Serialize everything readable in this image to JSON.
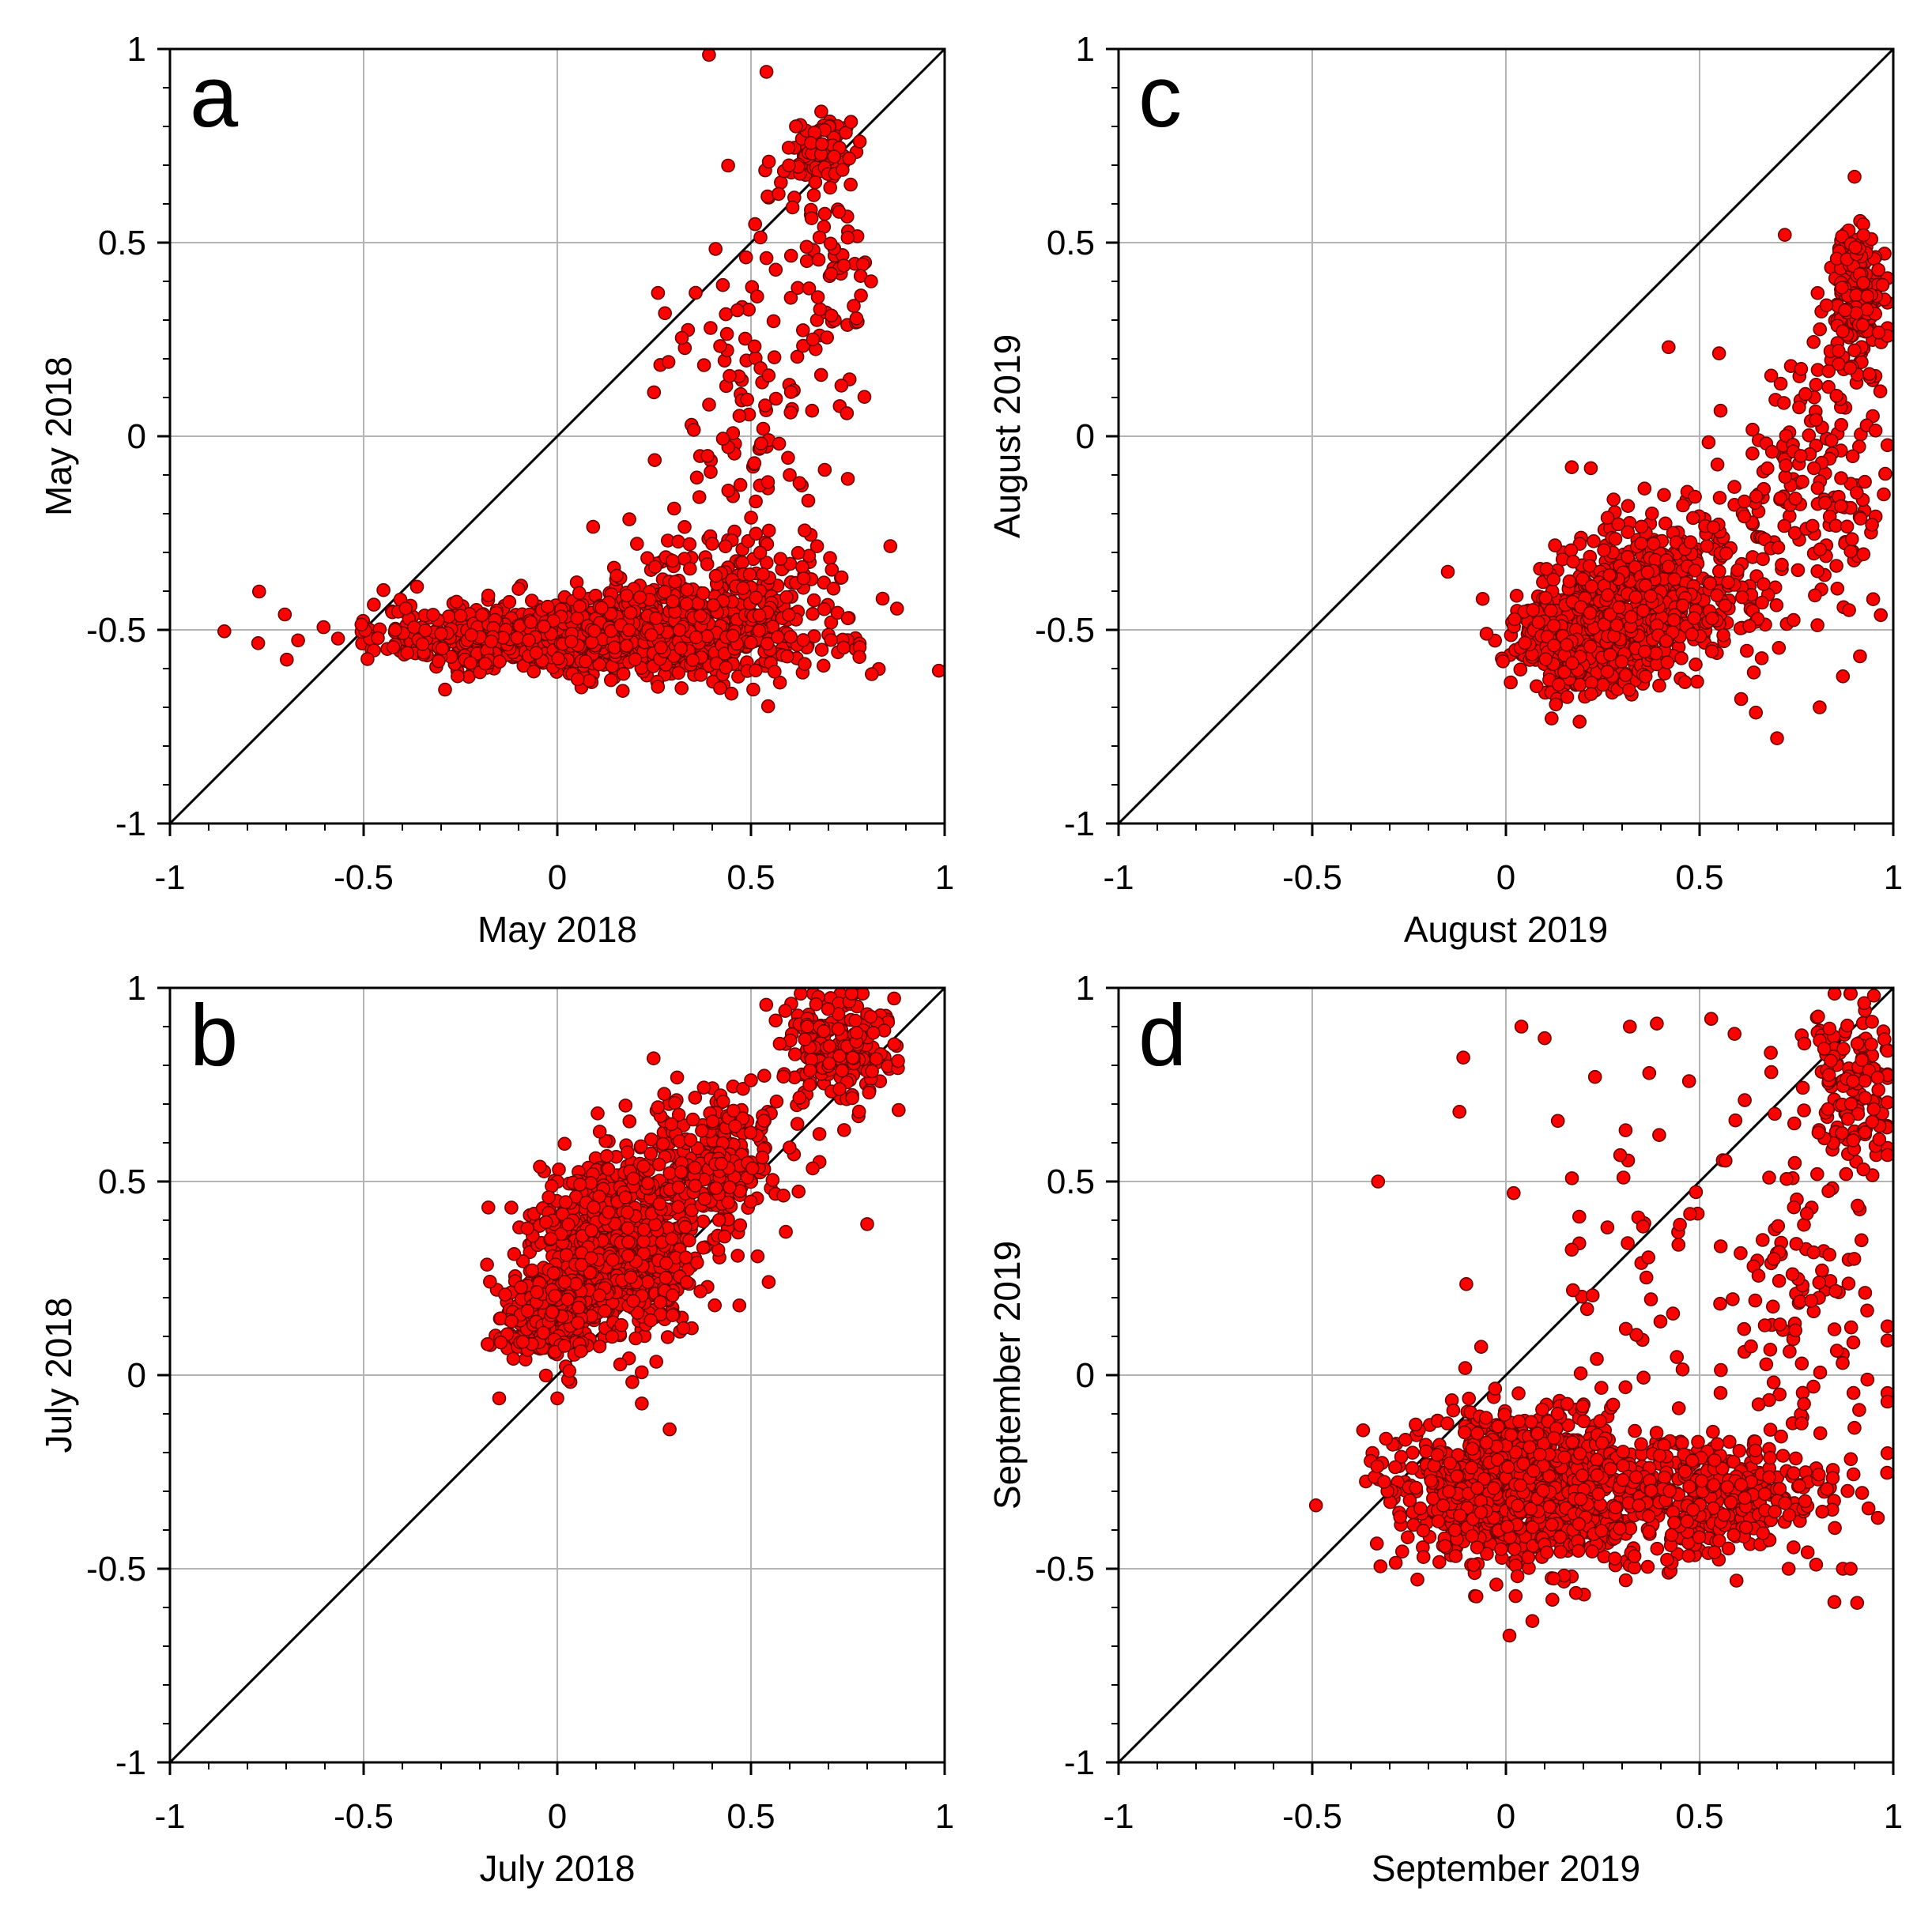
{
  "figure": {
    "colors": {
      "marker_fill": "#ff0000",
      "marker_edge": "#6a0000",
      "grid": "#b4b4b4",
      "line": "#000000"
    }
  },
  "chart_data": [
    {
      "panel": "a",
      "type": "scatter",
      "xlabel": "May 2018",
      "ylabel": "May 2018",
      "xlim": [
        -1,
        1
      ],
      "ylim": [
        -1,
        1
      ],
      "xticks": [
        "-1",
        "-0.5",
        "0",
        "0.5",
        "1"
      ],
      "yticks": [
        "-1",
        "-0.5",
        "0",
        "0.5",
        "1"
      ],
      "reference_line": "y = x",
      "clusters": [
        {
          "center": [
            0.05,
            -0.52
          ],
          "spread": [
            0.26,
            0.045
          ],
          "count": 900
        },
        {
          "center": [
            0.4,
            -0.45
          ],
          "spread": [
            0.18,
            0.09
          ],
          "count": 350
        },
        {
          "center": [
            0.5,
            0.1
          ],
          "spread": [
            0.1,
            0.28
          ],
          "count": 130
        },
        {
          "center": [
            0.68,
            0.74
          ],
          "spread": [
            0.05,
            0.04
          ],
          "count": 70
        },
        {
          "center": [
            0.71,
            0.4
          ],
          "spread": [
            0.05,
            0.15
          ],
          "count": 60
        }
      ],
      "points": [
        [
          0.81,
          0.4
        ],
        [
          0.78,
          -0.57
        ],
        [
          0.75,
          -0.47
        ],
        [
          0.26,
          0.37
        ],
        [
          -0.3,
          -0.51
        ],
        [
          0.6,
          -0.1
        ],
        [
          0.75,
          -0.11
        ],
        [
          0.66,
          0.25
        ],
        [
          0.54,
          0.46
        ]
      ]
    },
    {
      "panel": "b",
      "type": "scatter",
      "xlabel": "July 2018",
      "ylabel": "July 2018",
      "xlim": [
        -1,
        1
      ],
      "ylim": [
        -1,
        1
      ],
      "xticks": [
        "-1",
        "-0.5",
        "0",
        "0.5",
        "1"
      ],
      "yticks": [
        "-1",
        "-0.5",
        "0",
        "0.5",
        "1"
      ],
      "reference_line": "y = x",
      "clusters": [
        {
          "center": [
            0.15,
            0.33
          ],
          "spread": [
            0.1,
            0.11
          ],
          "count": 850
        },
        {
          "center": [
            -0.03,
            0.15
          ],
          "spread": [
            0.06,
            0.06
          ],
          "count": 250
        },
        {
          "center": [
            0.4,
            0.55
          ],
          "spread": [
            0.1,
            0.1
          ],
          "count": 250
        },
        {
          "center": [
            0.72,
            0.85
          ],
          "spread": [
            0.07,
            0.07
          ],
          "count": 200
        }
      ],
      "points": [
        [
          0.29,
          -0.14
        ],
        [
          0.8,
          0.39
        ],
        [
          0.0,
          -0.06
        ],
        [
          -0.15,
          -0.06
        ],
        [
          -0.18,
          0.08
        ],
        [
          0.47,
          0.18
        ],
        [
          0.59,
          0.37
        ],
        [
          0.35,
          0.66
        ]
      ]
    },
    {
      "panel": "c",
      "type": "scatter",
      "xlabel": "August 2019",
      "ylabel": "August 2019",
      "xlim": [
        -1,
        1
      ],
      "ylim": [
        -1,
        1
      ],
      "xticks": [
        "-1",
        "-0.5",
        "0",
        "0.5",
        "1"
      ],
      "yticks": [
        "-1",
        "-0.5",
        "0",
        "0.5",
        "1"
      ],
      "reference_line": "y = x",
      "clusters": [
        {
          "center": [
            0.2,
            -0.53
          ],
          "spread": [
            0.08,
            0.06
          ],
          "count": 700
        },
        {
          "center": [
            0.38,
            -0.4
          ],
          "spread": [
            0.12,
            0.1
          ],
          "count": 450
        },
        {
          "center": [
            0.7,
            -0.2
          ],
          "spread": [
            0.12,
            0.18
          ],
          "count": 120
        },
        {
          "center": [
            0.91,
            0.35
          ],
          "spread": [
            0.035,
            0.1
          ],
          "count": 180
        },
        {
          "center": [
            0.85,
            -0.1
          ],
          "spread": [
            0.06,
            0.2
          ],
          "count": 80
        }
      ],
      "points": [
        [
          -0.15,
          -0.35
        ],
        [
          -0.06,
          -0.42
        ],
        [
          -0.05,
          -0.51
        ],
        [
          0.7,
          -0.78
        ],
        [
          0.81,
          -0.7
        ],
        [
          0.42,
          0.23
        ],
        [
          0.72,
          0.52
        ],
        [
          0.9,
          0.67
        ],
        [
          0.17,
          -0.08
        ],
        [
          0.64,
          -0.61
        ],
        [
          0.87,
          -0.62
        ]
      ]
    },
    {
      "panel": "d",
      "type": "scatter",
      "xlabel": "September 2019",
      "ylabel": "September 2019",
      "xlim": [
        -1,
        1
      ],
      "ylim": [
        -1,
        1
      ],
      "xticks": [
        "-1",
        "-0.5",
        "0",
        "0.5",
        "1"
      ],
      "yticks": [
        "-1",
        "-0.5",
        "0",
        "0.5",
        "1"
      ],
      "reference_line": "y = x",
      "clusters": [
        {
          "center": [
            0.05,
            -0.3
          ],
          "spread": [
            0.17,
            0.1
          ],
          "count": 1050
        },
        {
          "center": [
            0.55,
            -0.32
          ],
          "spread": [
            0.14,
            0.08
          ],
          "count": 300
        },
        {
          "center": [
            0.9,
            0.75
          ],
          "spread": [
            0.06,
            0.12
          ],
          "count": 150
        },
        {
          "center": [
            0.78,
            0.1
          ],
          "spread": [
            0.12,
            0.28
          ],
          "count": 120
        },
        {
          "center": [
            0.4,
            0.25
          ],
          "spread": [
            0.18,
            0.25
          ],
          "count": 60
        }
      ],
      "points": [
        [
          -0.33,
          0.5
        ],
        [
          -0.11,
          0.82
        ],
        [
          -0.12,
          0.68
        ],
        [
          0.04,
          0.9
        ],
        [
          0.1,
          0.87
        ],
        [
          0.32,
          0.9
        ],
        [
          0.23,
          0.77
        ],
        [
          0.37,
          0.78
        ],
        [
          0.53,
          0.92
        ],
        [
          0.12,
          -0.58
        ],
        [
          0.73,
          -0.5
        ],
        [
          0.87,
          -0.5
        ],
        [
          0.89,
          -0.5
        ],
        [
          0.02,
          0.47
        ],
        [
          0.95,
          0.98
        ]
      ]
    }
  ]
}
